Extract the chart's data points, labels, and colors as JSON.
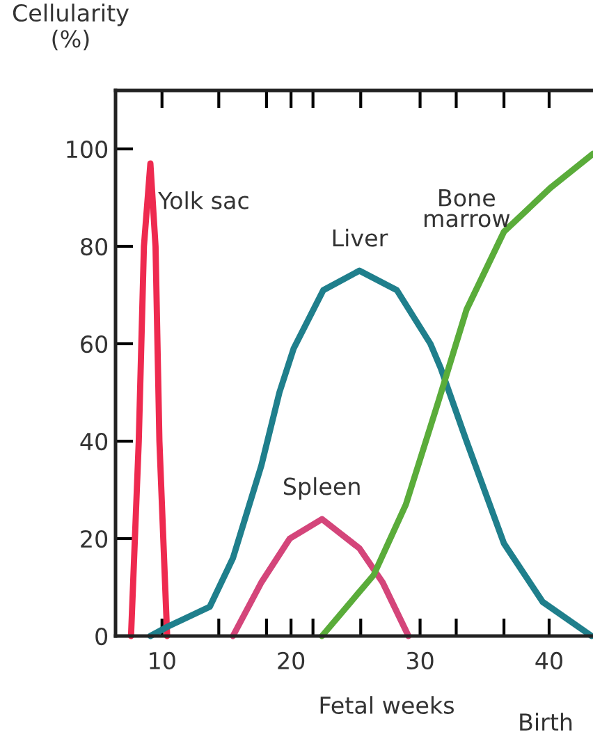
{
  "chart_data": {
    "type": "line",
    "ylabel": "Cellularity\n(%)",
    "xlabel": "Fetal weeks",
    "annotations": [
      "Birth"
    ],
    "series": [
      {
        "name": "Yolk sac",
        "color": "#ee2a4f",
        "x": [
          7.6,
          8.2,
          8.6,
          9.1,
          9.5,
          9.8,
          10.4
        ],
        "values": [
          0,
          40,
          80,
          97,
          80,
          40,
          0
        ]
      },
      {
        "name": "Liver",
        "color": "#1f7f8c",
        "x": [
          9.1,
          10.5,
          13.7,
          15.5,
          17.7,
          19.1,
          20.2,
          22.5,
          25.3,
          28.2,
          30.8,
          31.6,
          33.6,
          36.5,
          39.5,
          43.3
        ],
        "values": [
          0,
          2,
          6,
          16,
          35,
          50,
          59,
          71,
          75,
          71,
          60,
          55,
          40,
          19,
          7,
          0
        ]
      },
      {
        "name": "Spleen",
        "color": "#d4457a",
        "x": [
          15.5,
          17.7,
          19.9,
          22.4,
          25.3,
          27.1,
          29.1
        ],
        "values": [
          0,
          11,
          20,
          24,
          18,
          11,
          0
        ]
      },
      {
        "name": "Bone\nmarrow",
        "color": "#5aac3a",
        "x": [
          22.4,
          26.4,
          28.9,
          31.4,
          33.6,
          36.5,
          40.1,
          43.4
        ],
        "values": [
          0,
          12.5,
          27,
          48,
          67,
          83,
          92,
          99
        ]
      }
    ],
    "xlim": [
      6.4,
      43.4
    ],
    "ylim": [
      0,
      112
    ],
    "xticks": [
      10,
      {
        "value": 14.4,
        "label": null
      },
      {
        "value": 18.1,
        "label": null
      },
      20,
      {
        "value": 21.7,
        "label": null
      },
      {
        "value": 25.4,
        "label": null
      },
      30,
      {
        "value": 32.8,
        "label": null
      },
      {
        "value": 36.5,
        "label": null
      },
      40
    ],
    "yticks": [
      0,
      20,
      40,
      60,
      80,
      100
    ],
    "grid": false,
    "legend": false
  }
}
